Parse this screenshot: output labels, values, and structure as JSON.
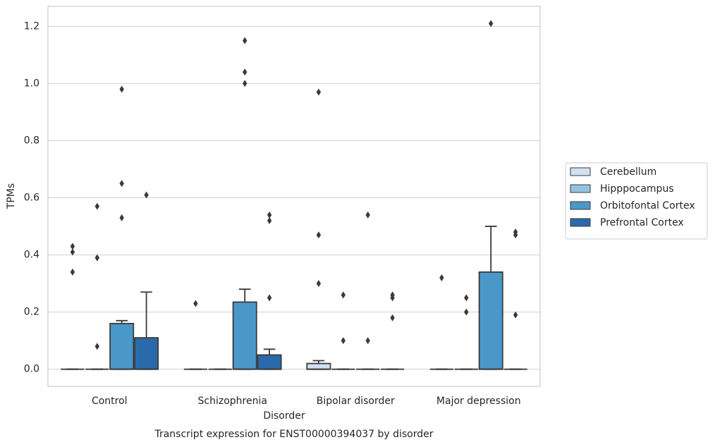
{
  "chart_data": {
    "type": "box",
    "title": "Transcript expression for ENST00000394037 by disorder",
    "x_label": "Disorder",
    "y_label": "TPMs",
    "categories": [
      "Control",
      "Schizophrenia",
      "Bipolar disorder",
      "Major depression"
    ],
    "ylim": [
      -0.06,
      1.27
    ],
    "yticks": [
      {
        "value": 0,
        "label": "0.0"
      },
      0.2,
      0.4,
      0.6,
      0.8,
      {
        "value": 1,
        "label": "1.0"
      },
      1.2
    ],
    "grid": true,
    "legend": "right",
    "series": [
      {
        "name": "Cerebellum",
        "color": "#d0e1f2",
        "boxes": [
          {
            "q1": 0,
            "median": 0,
            "q3": 0,
            "whislo": 0,
            "whishi": 0,
            "fliers": [
              0.43,
              0.41,
              0.34
            ]
          },
          {
            "q1": 0,
            "median": 0,
            "q3": 0,
            "whislo": 0,
            "whishi": 0,
            "fliers": [
              0.23
            ]
          },
          {
            "q1": 0,
            "median": 0,
            "q3": 0.02,
            "whislo": 0,
            "whishi": 0.03,
            "fliers": [
              0.97,
              0.47,
              0.3
            ]
          },
          {
            "q1": 0,
            "median": 0,
            "q3": 0,
            "whislo": 0,
            "whishi": 0,
            "fliers": [
              0.32
            ]
          }
        ]
      },
      {
        "name": "Hipppocampus",
        "color": "#94c4df",
        "boxes": [
          {
            "q1": 0,
            "median": 0,
            "q3": 0,
            "whislo": 0,
            "whishi": 0,
            "fliers": [
              0.57,
              0.39,
              0.08
            ]
          },
          {
            "q1": 0,
            "median": 0,
            "q3": 0,
            "whislo": 0,
            "whishi": 0,
            "fliers": []
          },
          {
            "q1": 0,
            "median": 0,
            "q3": 0,
            "whislo": 0,
            "whishi": 0,
            "fliers": [
              0.26,
              0.1
            ]
          },
          {
            "q1": 0,
            "median": 0,
            "q3": 0,
            "whislo": 0,
            "whishi": 0,
            "fliers": [
              0.25,
              0.2
            ]
          }
        ]
      },
      {
        "name": "Orbitofontal Cortex",
        "color": "#4a98c9",
        "boxes": [
          {
            "q1": 0,
            "median": 0,
            "q3": 0.16,
            "whislo": 0,
            "whishi": 0.17,
            "fliers": [
              0.98,
              0.65,
              0.53
            ]
          },
          {
            "q1": 0,
            "median": 0,
            "q3": 0.235,
            "whislo": 0,
            "whishi": 0.28,
            "fliers": [
              1.15,
              1.04,
              1.0
            ]
          },
          {
            "q1": 0,
            "median": 0,
            "q3": 0,
            "whislo": 0,
            "whishi": 0,
            "fliers": [
              0.54,
              0.1
            ]
          },
          {
            "q1": 0,
            "median": 0,
            "q3": 0.34,
            "whislo": 0,
            "whishi": 0.5,
            "fliers": [
              1.21
            ]
          }
        ]
      },
      {
        "name": "Prefrontal Cortex",
        "color": "#2a6aab",
        "boxes": [
          {
            "q1": 0,
            "median": 0,
            "q3": 0.11,
            "whislo": 0,
            "whishi": 0.27,
            "fliers": [
              0.61
            ]
          },
          {
            "q1": 0,
            "median": 0,
            "q3": 0.05,
            "whislo": 0,
            "whishi": 0.07,
            "fliers": [
              0.54,
              0.52,
              0.25
            ]
          },
          {
            "q1": 0,
            "median": 0,
            "q3": 0,
            "whislo": 0,
            "whishi": 0,
            "fliers": [
              0.26,
              0.25,
              0.18
            ]
          },
          {
            "q1": 0,
            "median": 0,
            "q3": 0,
            "whislo": 0,
            "whishi": 0,
            "fliers": [
              0.48,
              0.47,
              0.19
            ]
          }
        ]
      }
    ]
  }
}
